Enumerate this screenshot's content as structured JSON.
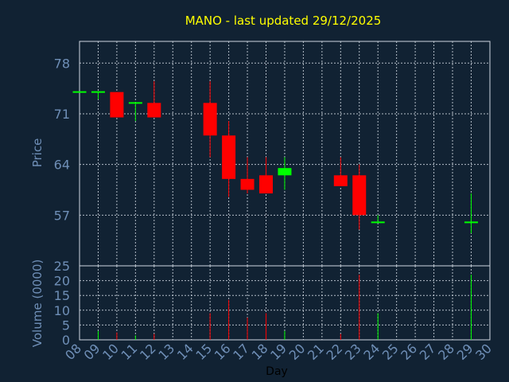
{
  "chart_data": {
    "type": "candlestick",
    "title": "MANO - last updated 29/12/2025",
    "xlabel": "Day",
    "colors": {
      "background": "#112233",
      "up": "#00ff00",
      "down": "#ff0000",
      "text": "#6f8fb7",
      "title": "#ffff00"
    },
    "grid": true,
    "x_ticks": [
      "08",
      "09",
      "10",
      "11",
      "12",
      "13",
      "14",
      "15",
      "16",
      "17",
      "18",
      "19",
      "20",
      "21",
      "22",
      "23",
      "24",
      "25",
      "26",
      "27",
      "28",
      "29",
      "30"
    ],
    "price": {
      "ylabel": "Price",
      "ylim": [
        50,
        81
      ],
      "yticks": [
        57,
        64,
        71,
        78
      ],
      "candles": [
        {
          "day": "08",
          "open": 74.0,
          "high": 74.0,
          "low": 74.0,
          "close": 74.0
        },
        {
          "day": "09",
          "open": 74.0,
          "high": 74.0,
          "low": 73.0,
          "close": 74.0
        },
        {
          "day": "10",
          "open": 74.0,
          "high": 74.0,
          "low": 70.5,
          "close": 70.5
        },
        {
          "day": "11",
          "open": 72.5,
          "high": 72.5,
          "low": 70.0,
          "close": 72.5
        },
        {
          "day": "12",
          "open": 72.5,
          "high": 75.5,
          "low": 70.5,
          "close": 70.5
        },
        {
          "day": "15",
          "open": 72.5,
          "high": 75.5,
          "low": 65.0,
          "close": 68.0
        },
        {
          "day": "16",
          "open": 68.0,
          "high": 70.0,
          "low": 59.5,
          "close": 62.0
        },
        {
          "day": "17",
          "open": 62.0,
          "high": 65.0,
          "low": 60.0,
          "close": 60.5
        },
        {
          "day": "18",
          "open": 62.5,
          "high": 65.0,
          "low": 60.0,
          "close": 60.0
        },
        {
          "day": "19",
          "open": 62.5,
          "high": 65.0,
          "low": 60.5,
          "close": 63.5
        },
        {
          "day": "22",
          "open": 62.5,
          "high": 65.0,
          "low": 61.0,
          "close": 61.0
        },
        {
          "day": "23",
          "open": 62.5,
          "high": 64.0,
          "low": 55.0,
          "close": 57.0
        },
        {
          "day": "24",
          "open": 56.0,
          "high": 57.0,
          "low": 56.0,
          "close": 56.0
        },
        {
          "day": "29",
          "open": 56.0,
          "high": 60.0,
          "low": 54.5,
          "close": 56.0
        }
      ]
    },
    "volume": {
      "ylabel": "Volume (0000)",
      "ylim": [
        0,
        25
      ],
      "yticks": [
        0,
        5,
        10,
        15,
        20,
        25
      ],
      "bars": [
        {
          "day": "09",
          "value": 3,
          "up": true
        },
        {
          "day": "10",
          "value": 2.5,
          "up": false
        },
        {
          "day": "11",
          "value": 1.5,
          "up": true
        },
        {
          "day": "12",
          "value": 2,
          "up": false
        },
        {
          "day": "15",
          "value": 9,
          "up": false
        },
        {
          "day": "16",
          "value": 13.5,
          "up": false
        },
        {
          "day": "17",
          "value": 7.5,
          "up": false
        },
        {
          "day": "18",
          "value": 9,
          "up": false
        },
        {
          "day": "19",
          "value": 3,
          "up": true
        },
        {
          "day": "22",
          "value": 2,
          "up": false
        },
        {
          "day": "23",
          "value": 22,
          "up": false
        },
        {
          "day": "24",
          "value": 9,
          "up": true
        },
        {
          "day": "29",
          "value": 22,
          "up": true
        }
      ]
    }
  }
}
